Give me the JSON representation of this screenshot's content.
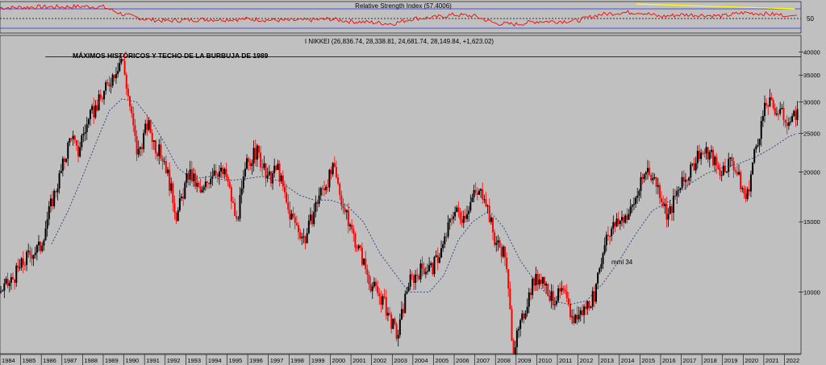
{
  "chart_data": [
    {
      "type": "line",
      "title": "Relative Strength Index (57.4006)",
      "y_ticks": [
        50
      ],
      "bands": [
        30,
        50,
        70
      ],
      "ylim": [
        20,
        85
      ],
      "x": [
        "1984",
        "1985",
        "1986",
        "1987",
        "1988",
        "1989",
        "1990",
        "1991",
        "1992",
        "1993",
        "1994",
        "1995",
        "1996",
        "1997",
        "1998",
        "1999",
        "2000",
        "2001",
        "2002",
        "2003",
        "2004",
        "2005",
        "2006",
        "2007",
        "2008",
        "2009",
        "2010",
        "2011",
        "2012",
        "2013",
        "2014",
        "2015",
        "2016",
        "2017",
        "2018",
        "2019",
        "2020",
        "2021",
        "2022"
      ],
      "values": [
        72,
        73,
        74,
        74,
        75,
        74,
        58,
        49,
        45,
        47,
        48,
        48,
        49,
        47,
        46,
        47,
        49,
        44,
        42,
        39,
        50,
        52,
        58,
        55,
        40,
        38,
        44,
        44,
        46,
        58,
        62,
        63,
        54,
        58,
        57,
        55,
        62,
        60,
        57
      ],
      "series_color": "#ff0000",
      "trendline": {
        "x": [
          "2014.8",
          "2022.5"
        ],
        "y": [
          80,
          70
        ],
        "color": "#ffff00"
      }
    },
    {
      "type": "candlestick",
      "legend": "I NIKKEI (26,836.74, 28,338.81, 24,681.74, 28,149.84, +1,623.02)",
      "annotation": "MÁXIMOS HISTÓRICOS Y TECHO DE LA BURBUJA DE 1989",
      "ma_label": "mml 34",
      "y_scale": "log",
      "ylim": [
        7000,
        44000
      ],
      "y_ticks": [
        10000,
        15000,
        20000,
        25000,
        30000,
        35000,
        40000
      ],
      "y_tick_labels": [
        "10000",
        "15000",
        "20000",
        "25000",
        "30000",
        "35000",
        "40000"
      ],
      "x_tick_labels": [
        "1984",
        "1985",
        "1986",
        "1987",
        "1988",
        "1989",
        "1990",
        "1991",
        "1992",
        "1993",
        "1994",
        "1995",
        "1996",
        "1997",
        "1998",
        "1999",
        "2000",
        "2001",
        "2002",
        "2003",
        "2004",
        "2005",
        "2006",
        "2007",
        "2008",
        "2009",
        "2010",
        "2011",
        "2012",
        "2013",
        "2014",
        "2015",
        "2016",
        "2017",
        "2018",
        "2019",
        "2020",
        "2021",
        "2022"
      ],
      "x_range": [
        "1984",
        "2022.8"
      ],
      "resistance_level": 38900,
      "price_path": [
        [
          "1984.0",
          10000
        ],
        [
          "1984.5",
          10500
        ],
        [
          "1985.0",
          11500
        ],
        [
          "1985.5",
          12500
        ],
        [
          "1986.0",
          13000
        ],
        [
          "1986.5",
          16500
        ],
        [
          "1987.0",
          20000
        ],
        [
          "1987.5",
          25000
        ],
        [
          "1987.8",
          22000
        ],
        [
          "1988.0",
          24500
        ],
        [
          "1988.5",
          28000
        ],
        [
          "1989.0",
          31000
        ],
        [
          "1989.5",
          35000
        ],
        [
          "1989.95",
          38900
        ],
        [
          "1990.3",
          30000
        ],
        [
          "1990.7",
          22000
        ],
        [
          "1991.2",
          26500
        ],
        [
          "1991.6",
          23000
        ],
        [
          "1992.0",
          21500
        ],
        [
          "1992.6",
          15500
        ],
        [
          "1993.2",
          20000
        ],
        [
          "1993.8",
          17500
        ],
        [
          "1994.4",
          20500
        ],
        [
          "1995.0",
          19500
        ],
        [
          "1995.5",
          15000
        ],
        [
          "1996.0",
          21000
        ],
        [
          "1996.5",
          22500
        ],
        [
          "1997.0",
          19000
        ],
        [
          "1997.5",
          20500
        ],
        [
          "1998.0",
          16000
        ],
        [
          "1998.8",
          13500
        ],
        [
          "1999.5",
          17500
        ],
        [
          "2000.2",
          20300
        ],
        [
          "2000.8",
          15500
        ],
        [
          "2001.5",
          12500
        ],
        [
          "2002.0",
          10500
        ],
        [
          "2002.6",
          9500
        ],
        [
          "2003.3",
          7700
        ],
        [
          "2003.8",
          10500
        ],
        [
          "2004.5",
          11500
        ],
        [
          "2005.0",
          11500
        ],
        [
          "2005.5",
          13000
        ],
        [
          "2006.0",
          16000
        ],
        [
          "2006.5",
          15500
        ],
        [
          "2007.0",
          17500
        ],
        [
          "2007.5",
          17800
        ],
        [
          "2008.0",
          13500
        ],
        [
          "2008.5",
          12500
        ],
        [
          "2008.9",
          7200
        ],
        [
          "2009.2",
          8000
        ],
        [
          "2009.8",
          10500
        ],
        [
          "2010.3",
          11000
        ],
        [
          "2010.8",
          9500
        ],
        [
          "2011.3",
          10000
        ],
        [
          "2011.8",
          8500
        ],
        [
          "2012.3",
          9000
        ],
        [
          "2012.9",
          10000
        ],
        [
          "2013.4",
          14000
        ],
        [
          "2014.0",
          15000
        ],
        [
          "2014.6",
          16000
        ],
        [
          "2015.4",
          20500
        ],
        [
          "2015.9",
          18500
        ],
        [
          "2016.4",
          15500
        ],
        [
          "2016.9",
          18000
        ],
        [
          "2017.5",
          20000
        ],
        [
          "2017.9",
          22500
        ],
        [
          "2018.5",
          22000
        ],
        [
          "2018.9",
          20000
        ],
        [
          "2019.5",
          21500
        ],
        [
          "2020.2",
          17000
        ],
        [
          "2020.6",
          22500
        ],
        [
          "2021.0",
          27500
        ],
        [
          "2021.2",
          30000
        ],
        [
          "2021.7",
          28500
        ],
        [
          "2022.4",
          26500
        ],
        [
          "2022.6",
          28100
        ]
      ],
      "ma_path": [
        [
          "1986.5",
          13200
        ],
        [
          "1987.3",
          16000
        ],
        [
          "1988.0",
          19500
        ],
        [
          "1988.7",
          24000
        ],
        [
          "1989.3",
          28500
        ],
        [
          "1989.9",
          30500
        ],
        [
          "1990.6",
          30000
        ],
        [
          "1991.3",
          27000
        ],
        [
          "1991.9",
          24000
        ],
        [
          "1992.6",
          20500
        ],
        [
          "1993.3",
          19200
        ],
        [
          "1994.2",
          19500
        ],
        [
          "1995.0",
          19000
        ],
        [
          "1995.8",
          19200
        ],
        [
          "1996.7",
          19500
        ],
        [
          "1997.5",
          19000
        ],
        [
          "1998.5",
          17500
        ],
        [
          "1999.2",
          17000
        ],
        [
          "2000.0",
          17000
        ],
        [
          "2000.8",
          16500
        ],
        [
          "2001.6",
          15000
        ],
        [
          "2002.4",
          12500
        ],
        [
          "2003.2",
          11000
        ],
        [
          "2003.8",
          10000
        ],
        [
          "2004.8",
          10000
        ],
        [
          "2005.5",
          11000
        ],
        [
          "2006.2",
          13500
        ],
        [
          "2006.9",
          15000
        ],
        [
          "2007.7",
          16000
        ],
        [
          "2008.4",
          14500
        ],
        [
          "2009.2",
          12000
        ],
        [
          "2010.0",
          10500
        ],
        [
          "2010.8",
          9500
        ],
        [
          "2011.6",
          9300
        ],
        [
          "2012.4",
          9500
        ],
        [
          "2013.2",
          10500
        ],
        [
          "2014.0",
          12000
        ],
        [
          "2014.8",
          14000
        ],
        [
          "2015.6",
          16000
        ],
        [
          "2016.5",
          17000
        ],
        [
          "2017.3",
          18500
        ],
        [
          "2018.2",
          19800
        ],
        [
          "2019.0",
          20500
        ],
        [
          "2019.8",
          21000
        ],
        [
          "2020.6",
          21800
        ],
        [
          "2021.4",
          23000
        ],
        [
          "2022.2",
          24500
        ],
        [
          "2022.6",
          25000
        ]
      ]
    }
  ]
}
